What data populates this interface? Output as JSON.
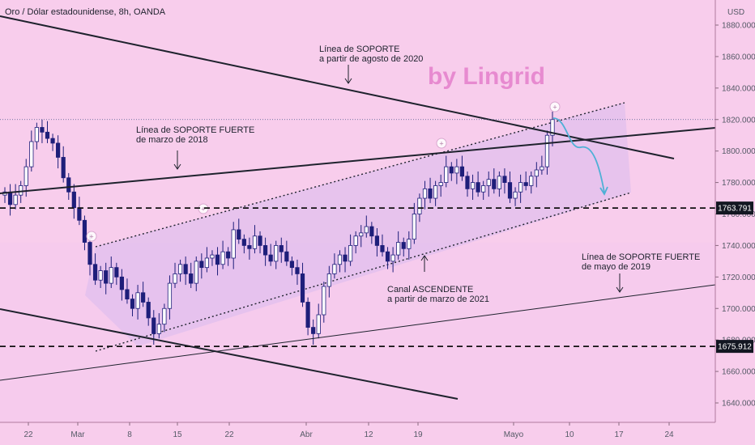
{
  "header": {
    "title": "Oro / Dólar estadounidense, 8h, OANDA"
  },
  "watermark": "by Lingrid",
  "chart_data": {
    "type": "candlestick",
    "title": "Oro / Dólar estadounidense, 8h, OANDA",
    "currency": "USD",
    "ylim": [
      1625,
      1910
    ],
    "y_ticks": [
      1640,
      1660,
      1680,
      1700,
      1720,
      1740,
      1760,
      1780,
      1800,
      1820,
      1840,
      1860,
      1880
    ],
    "y_tick_labels": [
      "1640.000",
      "1660.000",
      "1680.000",
      "1700.000",
      "1720.000",
      "1740.000",
      "1760.000",
      "1780.000",
      "1800.000",
      "1820.000",
      "1840.000",
      "1860.000",
      "1880.000"
    ],
    "x_ticks": [
      "22",
      "Mar",
      "8",
      "15",
      "22",
      "Abr",
      "12",
      "19",
      "Mayo",
      "10",
      "17",
      "24"
    ],
    "horizontal_levels": [
      {
        "value": 1763.791,
        "label": "1763.791",
        "style": "dashed"
      },
      {
        "value": 1675.912,
        "label": "1675.912",
        "style": "dashed"
      }
    ],
    "current_price_level": 1820,
    "annotations": [
      {
        "lines": [
          "Línea de SOPORTE",
          "a partir de agosto de 2020"
        ]
      },
      {
        "lines": [
          "Línea de SOPORTE FUERTE",
          "de marzo de 2018"
        ]
      },
      {
        "lines": [
          "Canal ASCENDENTE",
          "a partir de marzo de 2021"
        ]
      },
      {
        "lines": [
          "Línea de SOPORTE FUERTE",
          "de mayo de 2019"
        ]
      }
    ],
    "candles_close": [
      1774,
      1766,
      1772,
      1778,
      1790,
      1806,
      1815,
      1812,
      1808,
      1805,
      1796,
      1783,
      1774,
      1764,
      1756,
      1742,
      1728,
      1718,
      1724,
      1716,
      1726,
      1720,
      1712,
      1706,
      1700,
      1710,
      1704,
      1694,
      1684,
      1690,
      1700,
      1716,
      1722,
      1728,
      1722,
      1716,
      1730,
      1726,
      1732,
      1734,
      1728,
      1736,
      1732,
      1750,
      1744,
      1740,
      1738,
      1746,
      1740,
      1734,
      1730,
      1740,
      1736,
      1730,
      1726,
      1722,
      1704,
      1688,
      1684,
      1696,
      1714,
      1722,
      1728,
      1734,
      1730,
      1740,
      1746,
      1748,
      1752,
      1746,
      1740,
      1736,
      1730,
      1734,
      1742,
      1738,
      1744,
      1760,
      1770,
      1776,
      1770,
      1778,
      1780,
      1790,
      1786,
      1790,
      1784,
      1776,
      1780,
      1774,
      1778,
      1782,
      1776,
      1784,
      1780,
      1770,
      1774,
      1780,
      1778,
      1784,
      1788,
      1790,
      1810,
      1820
    ]
  }
}
